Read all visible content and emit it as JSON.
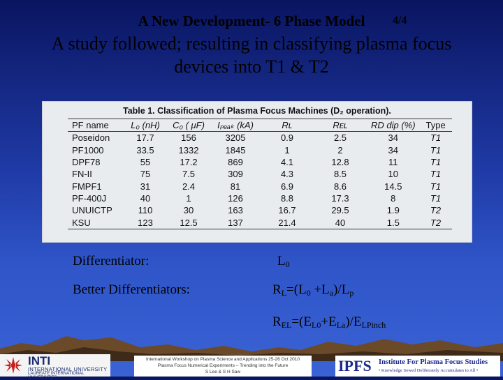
{
  "slide": {
    "title": "A New Development- 6 Phase Model",
    "page_indicator": "4/4",
    "subtitle_line1": "A study followed; resulting in classifying plasma focus",
    "subtitle_line2": "devices into T1 & T2"
  },
  "table": {
    "caption": "Table 1. Classification of Plasma Focus Machines (D₂ operation).",
    "headers": {
      "pf_name": "PF name",
      "l0": "L₀ (nH)",
      "c0": "C₀ ( μF)",
      "ipeak": "Iₚₑₐₖ (kA)",
      "rl": "Rʟ",
      "rel": "Rᴇʟ",
      "rd": "RD dip (%)",
      "type": "Type"
    },
    "rows": [
      [
        "Poseidon",
        "17.7",
        "156",
        "3205",
        "0.9",
        "2.5",
        "34",
        "T1"
      ],
      [
        "PF1000",
        "33.5",
        "1332",
        "1845",
        "1",
        "2",
        "34",
        "T1"
      ],
      [
        "DPF78",
        "55",
        "17.2",
        "869",
        "4.1",
        "12.8",
        "11",
        "T1"
      ],
      [
        "FN-II",
        "75",
        "7.5",
        "309",
        "4.3",
        "8.5",
        "10",
        "T1"
      ],
      [
        "FMPF1",
        "31",
        "2.4",
        "81",
        "6.9",
        "8.6",
        "14.5",
        "T1"
      ],
      [
        "PF-400J",
        "40",
        "1",
        "126",
        "8.8",
        "17.3",
        "8",
        "T1"
      ],
      [
        "UNUICTP",
        "110",
        "30",
        "163",
        "16.7",
        "29.5",
        "1.9",
        "T2"
      ],
      [
        "KSU",
        "123",
        "12.5",
        "137",
        "21.4",
        "40",
        "1.5",
        "T2"
      ]
    ]
  },
  "body": {
    "differentiator_label": "Differentiator:",
    "differentiator_value": "L",
    "differentiator_sub": "0",
    "better_label": "Better Differentiators:",
    "rl_formula": {
      "p1": "R",
      "s1": "L",
      "p2": "=(L",
      "s2": "0",
      "p3": " +L",
      "s3": "a",
      "p4": ")/L",
      "s4": "p"
    },
    "rel_formula": {
      "p1": "R",
      "s1": "EL",
      "p2": "=(E",
      "s2": "L0",
      "p3": "+E",
      "s3": "La",
      "p4": ")/E",
      "s4": "LPinch"
    }
  },
  "footer": {
    "inti_brand": "INTI",
    "inti_line1": "INTERNATIONAL UNIVERSITY",
    "inti_line2": "LAUREATE INTERNATIONAL UNIVERSITIES",
    "conference_line1": "International Workshop on Plasma Science and Applications 25-26 Oct 2010",
    "conference_line2": "Plasma Focus Numerical Experiments – Trending into the Future",
    "conference_line3": "S Lee & S H Saw",
    "ipfs_brand": "IPFS",
    "ipfs_institute": "Institute For Plasma Focus Studies",
    "ipfs_tagline": "• Knowledge Sowed Deliberately Accumulates to All •"
  },
  "colors": {
    "background_top": "#0a1560",
    "background_bottom": "#3a63d6",
    "ipfs_blue": "#1a2a8e"
  }
}
